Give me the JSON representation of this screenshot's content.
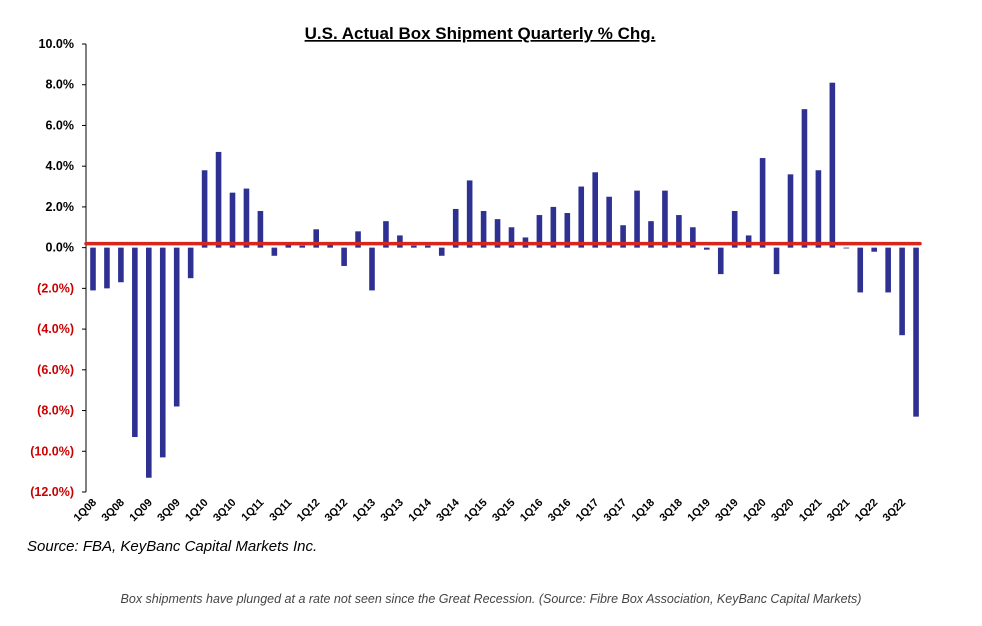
{
  "chart_data": {
    "type": "bar",
    "title": "U.S. Actual Box Shipment Quarterly % Chg.",
    "xlabel": "",
    "ylabel": "",
    "ylim": [
      -12,
      10
    ],
    "y_ticks": [
      "10.0%",
      "8.0%",
      "6.0%",
      "4.0%",
      "2.0%",
      "0.0%",
      "(2.0%)",
      "(4.0%)",
      "(6.0%)",
      "(8.0%)",
      "(10.0%)",
      "(12.0%)"
    ],
    "y_tick_values": [
      10,
      8,
      6,
      4,
      2,
      0,
      -2,
      -4,
      -6,
      -8,
      -10,
      -12
    ],
    "categories": [
      "1Q08",
      "2Q08",
      "3Q08",
      "4Q08",
      "1Q09",
      "2Q09",
      "3Q09",
      "4Q09",
      "1Q10",
      "2Q10",
      "3Q10",
      "4Q10",
      "1Q11",
      "2Q11",
      "3Q11",
      "4Q11",
      "1Q12",
      "2Q12",
      "3Q12",
      "4Q12",
      "1Q13",
      "2Q13",
      "3Q13",
      "4Q13",
      "1Q14",
      "2Q14",
      "3Q14",
      "4Q14",
      "1Q15",
      "2Q15",
      "3Q15",
      "4Q15",
      "1Q16",
      "2Q16",
      "3Q16",
      "4Q16",
      "1Q17",
      "2Q17",
      "3Q17",
      "4Q17",
      "1Q18",
      "2Q18",
      "3Q18",
      "4Q18",
      "1Q19",
      "2Q19",
      "3Q19",
      "4Q19",
      "1Q20",
      "2Q20",
      "3Q20",
      "4Q20",
      "1Q21",
      "2Q21",
      "3Q21",
      "4Q21",
      "1Q22",
      "2Q22",
      "3Q22",
      "4Q22"
    ],
    "x_tick_labels": [
      "1Q08",
      "3Q08",
      "1Q09",
      "3Q09",
      "1Q10",
      "3Q10",
      "1Q11",
      "3Q11",
      "1Q12",
      "3Q12",
      "1Q13",
      "3Q13",
      "1Q14",
      "3Q14",
      "1Q15",
      "3Q15",
      "1Q16",
      "3Q16",
      "1Q17",
      "3Q17",
      "1Q18",
      "3Q18",
      "1Q19",
      "3Q19",
      "1Q20",
      "3Q20",
      "1Q21",
      "3Q21",
      "1Q22",
      "3Q22"
    ],
    "values": [
      -2.1,
      -2.0,
      -1.7,
      -9.3,
      -11.3,
      -10.3,
      -7.8,
      -1.5,
      3.8,
      4.7,
      2.7,
      2.9,
      1.8,
      -0.4,
      0.2,
      0.1,
      0.9,
      0.2,
      -0.9,
      0.8,
      -2.1,
      1.3,
      0.6,
      0.1,
      0.1,
      -0.4,
      1.9,
      3.3,
      1.8,
      1.4,
      1.0,
      0.5,
      1.6,
      2.0,
      1.7,
      3.0,
      3.7,
      2.5,
      1.1,
      2.8,
      1.3,
      2.8,
      1.6,
      1.0,
      -0.1,
      -1.3,
      1.8,
      0.6,
      4.4,
      -1.3,
      3.6,
      6.8,
      3.8,
      8.1,
      0.0,
      -2.2,
      -0.2,
      -2.2,
      -4.3,
      -8.3
    ],
    "reference_line": 0.2,
    "colors": {
      "bar": "#2e3192",
      "reference_line": "#d9261c",
      "negative_tick": "#cc0000",
      "positive_tick": "#000000"
    },
    "grid": false,
    "legend": "none"
  },
  "source": "Source: FBA, KeyBanc Capital Markets Inc.",
  "caption": "Box shipments have plunged at a rate not seen since the Great Recession. (Source: Fibre Box Association, KeyBanc Capital Markets)"
}
